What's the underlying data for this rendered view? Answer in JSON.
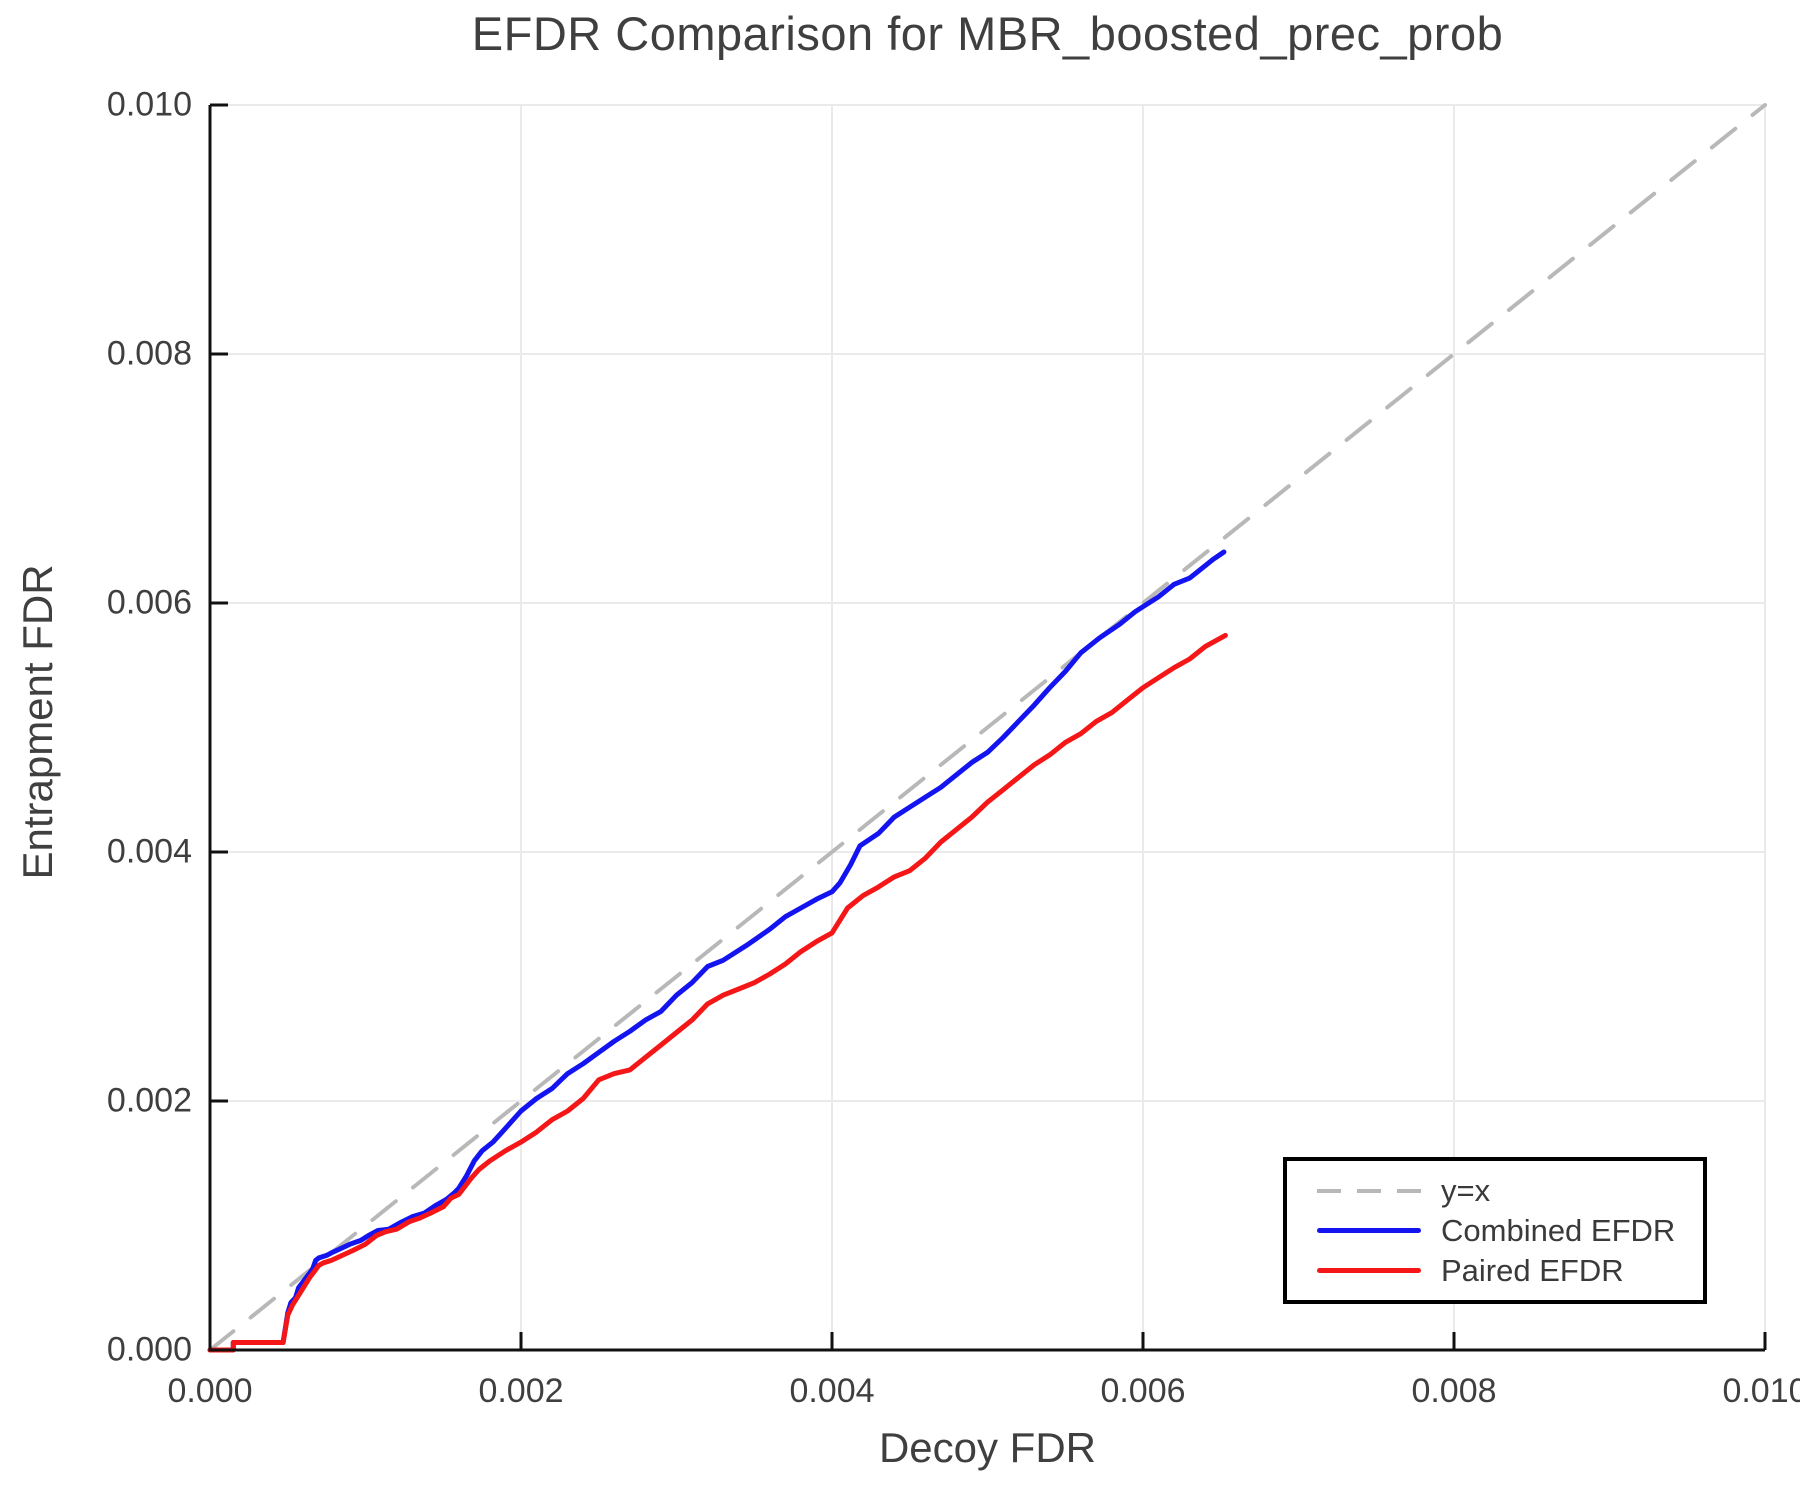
{
  "title": "EFDR Comparison for MBR_boosted_prec_prob",
  "axes": {
    "xlabel": "Decoy FDR",
    "ylabel": "Entrapment FDR",
    "x_tick_labels": [
      "0.000",
      "0.002",
      "0.004",
      "0.006",
      "0.008",
      "0.010"
    ],
    "y_tick_labels": [
      "0.000",
      "0.002",
      "0.004",
      "0.006",
      "0.008",
      "0.010"
    ],
    "x_tick_values": [
      0,
      0.002,
      0.004,
      0.006,
      0.008,
      0.01
    ],
    "y_tick_values": [
      0,
      0.002,
      0.004,
      0.006,
      0.008,
      0.01
    ]
  },
  "legend": {
    "entries": [
      {
        "label": "y=x",
        "style": "dashed",
        "color": "#b8b8b8"
      },
      {
        "label": "Combined EFDR",
        "style": "solid",
        "color": "#1414f0"
      },
      {
        "label": "Paired EFDR",
        "style": "solid",
        "color": "#f51717"
      }
    ]
  },
  "colors": {
    "grid": "#eaeaea",
    "spine": "#111111",
    "text": "#3f3f3f",
    "diagonal": "#b8b8b8",
    "combined": "#1414f0",
    "paired": "#f51717"
  },
  "chart_data": {
    "type": "line",
    "title": "EFDR Comparison for MBR_boosted_prec_prob",
    "xlabel": "Decoy FDR",
    "ylabel": "Entrapment FDR",
    "xlim": [
      0,
      0.01
    ],
    "ylim": [
      0,
      0.01
    ],
    "grid": true,
    "legend_position": "bottom-right",
    "series": [
      {
        "name": "y=x",
        "color": "#b8b8b8",
        "style": "dashed",
        "points": [
          [
            0,
            0
          ],
          [
            0.01,
            0.01
          ]
        ]
      },
      {
        "name": "Combined EFDR",
        "color": "#1414f0",
        "style": "solid",
        "points": [
          [
            0.0,
            0.0
          ],
          [
            0.00015,
            0.0
          ],
          [
            0.00015,
            6e-05
          ],
          [
            0.00047,
            6e-05
          ],
          [
            0.0005,
            0.0003
          ],
          [
            0.00052,
            0.00038
          ],
          [
            0.00055,
            0.00042
          ],
          [
            0.00057,
            0.0005
          ],
          [
            0.0006,
            0.00055
          ],
          [
            0.00063,
            0.0006
          ],
          [
            0.00066,
            0.00065
          ],
          [
            0.00068,
            0.00072
          ],
          [
            0.0007,
            0.00074
          ],
          [
            0.00075,
            0.00076
          ],
          [
            0.00078,
            0.00078
          ],
          [
            0.00085,
            0.00082
          ],
          [
            0.0009,
            0.00085
          ],
          [
            0.00097,
            0.00088
          ],
          [
            0.00102,
            0.00092
          ],
          [
            0.00108,
            0.00096
          ],
          [
            0.00115,
            0.00097
          ],
          [
            0.00122,
            0.00102
          ],
          [
            0.0013,
            0.00107
          ],
          [
            0.00138,
            0.0011
          ],
          [
            0.00145,
            0.00116
          ],
          [
            0.00152,
            0.00121
          ],
          [
            0.00157,
            0.00126
          ],
          [
            0.0016,
            0.0013
          ],
          [
            0.00165,
            0.0014
          ],
          [
            0.0017,
            0.00152
          ],
          [
            0.00175,
            0.0016
          ],
          [
            0.00182,
            0.00167
          ],
          [
            0.0019,
            0.00178
          ],
          [
            0.002,
            0.00192
          ],
          [
            0.0021,
            0.00202
          ],
          [
            0.0022,
            0.0021
          ],
          [
            0.0023,
            0.00222
          ],
          [
            0.0024,
            0.0023
          ],
          [
            0.0025,
            0.00239
          ],
          [
            0.0026,
            0.00248
          ],
          [
            0.0027,
            0.00256
          ],
          [
            0.0028,
            0.00265
          ],
          [
            0.0029,
            0.00272
          ],
          [
            0.003,
            0.00285
          ],
          [
            0.0031,
            0.00295
          ],
          [
            0.0032,
            0.00308
          ],
          [
            0.0033,
            0.00313
          ],
          [
            0.00345,
            0.00325
          ],
          [
            0.0036,
            0.00338
          ],
          [
            0.0037,
            0.00348
          ],
          [
            0.0038,
            0.00355
          ],
          [
            0.0039,
            0.00362
          ],
          [
            0.004,
            0.00368
          ],
          [
            0.00405,
            0.00375
          ],
          [
            0.00412,
            0.0039
          ],
          [
            0.00418,
            0.00405
          ],
          [
            0.0043,
            0.00415
          ],
          [
            0.0044,
            0.00428
          ],
          [
            0.0045,
            0.00436
          ],
          [
            0.0046,
            0.00444
          ],
          [
            0.0047,
            0.00452
          ],
          [
            0.0048,
            0.00462
          ],
          [
            0.0049,
            0.00472
          ],
          [
            0.005,
            0.0048
          ],
          [
            0.0051,
            0.00492
          ],
          [
            0.0052,
            0.00505
          ],
          [
            0.0053,
            0.00518
          ],
          [
            0.0054,
            0.00532
          ],
          [
            0.0055,
            0.00545
          ],
          [
            0.0056,
            0.0056
          ],
          [
            0.00572,
            0.00572
          ],
          [
            0.00585,
            0.00583
          ],
          [
            0.00595,
            0.00593
          ],
          [
            0.006,
            0.00597
          ],
          [
            0.0061,
            0.00605
          ],
          [
            0.0062,
            0.00615
          ],
          [
            0.0063,
            0.0062
          ],
          [
            0.00635,
            0.00625
          ],
          [
            0.00645,
            0.00635
          ],
          [
            0.00652,
            0.00641
          ]
        ]
      },
      {
        "name": "Paired EFDR",
        "color": "#f51717",
        "style": "solid",
        "points": [
          [
            0.0,
            0.0
          ],
          [
            0.00015,
            0.0
          ],
          [
            0.00015,
            6e-05
          ],
          [
            0.00047,
            6e-05
          ],
          [
            0.0005,
            0.00028
          ],
          [
            0.00053,
            0.00036
          ],
          [
            0.00056,
            0.00042
          ],
          [
            0.0006,
            0.0005
          ],
          [
            0.00064,
            0.00058
          ],
          [
            0.00067,
            0.00063
          ],
          [
            0.0007,
            0.00068
          ],
          [
            0.00073,
            0.0007
          ],
          [
            0.00078,
            0.00072
          ],
          [
            0.00085,
            0.00076
          ],
          [
            0.00092,
            0.0008
          ],
          [
            0.001,
            0.00085
          ],
          [
            0.00107,
            0.00092
          ],
          [
            0.00113,
            0.00095
          ],
          [
            0.0012,
            0.00097
          ],
          [
            0.00128,
            0.00103
          ],
          [
            0.00135,
            0.00106
          ],
          [
            0.00142,
            0.0011
          ],
          [
            0.0015,
            0.00115
          ],
          [
            0.00155,
            0.00122
          ],
          [
            0.0016,
            0.00125
          ],
          [
            0.00163,
            0.0013
          ],
          [
            0.00168,
            0.00138
          ],
          [
            0.00173,
            0.00145
          ],
          [
            0.0018,
            0.00152
          ],
          [
            0.0019,
            0.0016
          ],
          [
            0.002,
            0.00167
          ],
          [
            0.0021,
            0.00175
          ],
          [
            0.0022,
            0.00185
          ],
          [
            0.0023,
            0.00192
          ],
          [
            0.0024,
            0.00202
          ],
          [
            0.0025,
            0.00217
          ],
          [
            0.0026,
            0.00222
          ],
          [
            0.0027,
            0.00225
          ],
          [
            0.0028,
            0.00235
          ],
          [
            0.0029,
            0.00245
          ],
          [
            0.003,
            0.00255
          ],
          [
            0.0031,
            0.00265
          ],
          [
            0.0032,
            0.00278
          ],
          [
            0.0033,
            0.00285
          ],
          [
            0.0034,
            0.0029
          ],
          [
            0.0035,
            0.00295
          ],
          [
            0.0036,
            0.00302
          ],
          [
            0.0037,
            0.0031
          ],
          [
            0.0038,
            0.0032
          ],
          [
            0.0039,
            0.00328
          ],
          [
            0.004,
            0.00335
          ],
          [
            0.0041,
            0.00355
          ],
          [
            0.0042,
            0.00365
          ],
          [
            0.0043,
            0.00372
          ],
          [
            0.0044,
            0.0038
          ],
          [
            0.0045,
            0.00385
          ],
          [
            0.0046,
            0.00395
          ],
          [
            0.0047,
            0.00408
          ],
          [
            0.0048,
            0.00418
          ],
          [
            0.0049,
            0.00428
          ],
          [
            0.005,
            0.0044
          ],
          [
            0.0051,
            0.0045
          ],
          [
            0.0052,
            0.0046
          ],
          [
            0.0053,
            0.0047
          ],
          [
            0.0054,
            0.00478
          ],
          [
            0.0055,
            0.00488
          ],
          [
            0.0056,
            0.00495
          ],
          [
            0.0057,
            0.00505
          ],
          [
            0.0058,
            0.00512
          ],
          [
            0.0059,
            0.00522
          ],
          [
            0.006,
            0.00532
          ],
          [
            0.0061,
            0.0054
          ],
          [
            0.0062,
            0.00548
          ],
          [
            0.0063,
            0.00555
          ],
          [
            0.0064,
            0.00565
          ],
          [
            0.00653,
            0.00574
          ]
        ]
      }
    ]
  }
}
